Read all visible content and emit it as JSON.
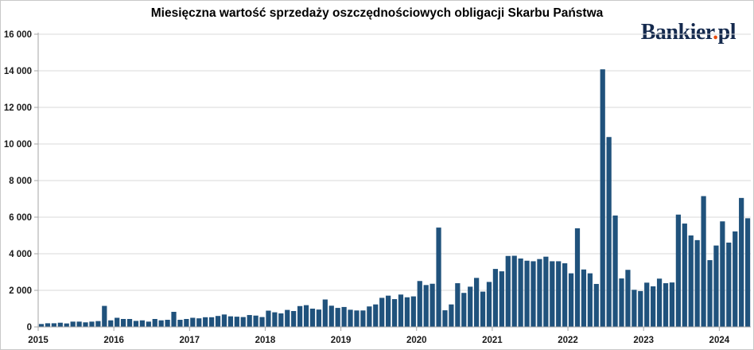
{
  "header": {
    "title": "Miesięczna wartość sprzedaży oszczędnościowych obligacji Skarbu Państwa",
    "logo": {
      "name": "Bankier",
      "dot": ".",
      "tld": "pl"
    }
  },
  "chart_data": {
    "type": "bar",
    "title": "Miesięczna wartość sprzedaży oszczędnościowych obligacji Skarbu Państwa",
    "xlabel": "",
    "ylabel": "",
    "ylim": [
      0,
      16000
    ],
    "grid": true,
    "legend": "none",
    "bar_color": "#20527c",
    "gridline_color": "#d9d9d9",
    "axis_color": "#a6a6a6",
    "tick_label_color": "#1a1a1a",
    "y_ticks": [
      "0",
      "2 000",
      "4 000",
      "6 000",
      "8 000",
      "10 000",
      "12 000",
      "14 000",
      "16 000"
    ],
    "x_tick_years": [
      "2015",
      "2016",
      "2017",
      "2018",
      "2019",
      "2020",
      "2021",
      "2022",
      "2023",
      "2024"
    ],
    "months_start": "2015-01",
    "series": [
      {
        "year": "2015",
        "values": [
          160,
          200,
          200,
          230,
          190,
          290,
          290,
          250,
          290,
          320,
          1150,
          360
        ]
      },
      {
        "year": "2016",
        "values": [
          500,
          435,
          435,
          330,
          360,
          290,
          435,
          360,
          390,
          825,
          390,
          435
        ]
      },
      {
        "year": "2017",
        "values": [
          500,
          470,
          530,
          530,
          600,
          680,
          580,
          560,
          540,
          650,
          620,
          540
        ]
      },
      {
        "year": "2018",
        "values": [
          890,
          800,
          740,
          930,
          870,
          1140,
          1190,
          1000,
          950,
          1500,
          1160,
          1040
        ]
      },
      {
        "year": "2019",
        "values": [
          1090,
          940,
          900,
          900,
          1120,
          1230,
          1590,
          1710,
          1520,
          1770,
          1620,
          1670
        ]
      },
      {
        "year": "2020",
        "values": [
          2510,
          2290,
          2360,
          5430,
          910,
          1230,
          2390,
          1860,
          2200,
          2680,
          1930,
          2460
        ]
      },
      {
        "year": "2021",
        "values": [
          3170,
          3040,
          3880,
          3890,
          3740,
          3620,
          3590,
          3710,
          3840,
          3590,
          3590,
          3480
        ]
      },
      {
        "year": "2022",
        "values": [
          2930,
          5390,
          3140,
          2930,
          2350,
          14080,
          10380,
          6090,
          2650,
          3120,
          2030,
          1960
        ]
      },
      {
        "year": "2023",
        "values": [
          2420,
          2220,
          2640,
          2390,
          2430,
          6140,
          5650,
          5000,
          4745,
          7150,
          3650,
          4450
        ]
      },
      {
        "year": "2024",
        "values": [
          5770,
          4610,
          5220,
          7050,
          5940
        ]
      }
    ]
  }
}
